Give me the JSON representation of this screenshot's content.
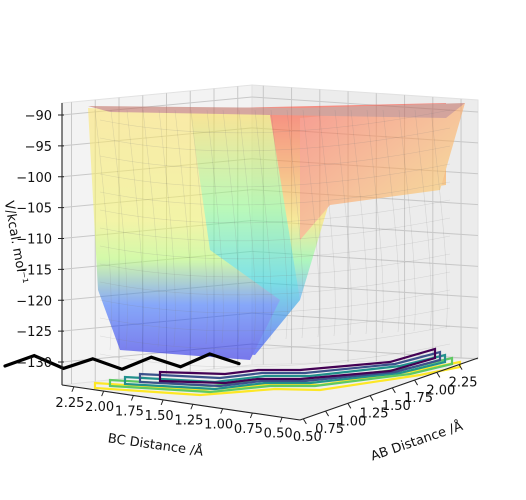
{
  "chart_data": {
    "type": "surface3d",
    "title": "",
    "xlabel": "BC Distance /Å",
    "ylabel": "AB Distance /Å",
    "zlabel": "V/kcal. mol⁻¹",
    "x_ticks": [
      "2.25",
      "2.00",
      "1.75",
      "1.50",
      "1.25",
      "1.00",
      "0.75",
      "0.50"
    ],
    "y_ticks": [
      "0.50",
      "0.75",
      "1.00",
      "1.25",
      "1.50",
      "1.75",
      "2.00",
      "2.25"
    ],
    "z_ticks": [
      "−90",
      "−95",
      "−100",
      "−105",
      "−110",
      "−115",
      "−120",
      "−125",
      "−130"
    ],
    "xlim": [
      0.5,
      2.4
    ],
    "ylim": [
      0.5,
      2.4
    ],
    "zlim": [
      -133,
      -90
    ],
    "grid": true,
    "colormap": "jet",
    "surface_alpha": 0.45,
    "contour_colors": [
      "#440154",
      "#3b528b",
      "#21918c",
      "#5ec962",
      "#fde725"
    ],
    "trajectory_color": "#000000",
    "surface_description": "Collinear triatomic potential energy surface with a low channel along both distance axes, rising steeply at short distances to a plateau near −90",
    "trajectory": [
      {
        "bc": 2.4,
        "ab": 0.74,
        "v": -131.5
      },
      {
        "bc": 2.25,
        "ab": 0.78,
        "v": -130.2
      },
      {
        "bc": 2.1,
        "ab": 0.72,
        "v": -131.8
      },
      {
        "bc": 1.95,
        "ab": 0.76,
        "v": -130.6
      },
      {
        "bc": 1.8,
        "ab": 0.73,
        "v": -131.9
      },
      {
        "bc": 1.65,
        "ab": 0.77,
        "v": -130.4
      },
      {
        "bc": 1.5,
        "ab": 0.72,
        "v": -131.6
      },
      {
        "bc": 1.35,
        "ab": 0.78,
        "v": -130.0
      },
      {
        "bc": 1.2,
        "ab": 0.74,
        "v": -131.2
      }
    ]
  }
}
